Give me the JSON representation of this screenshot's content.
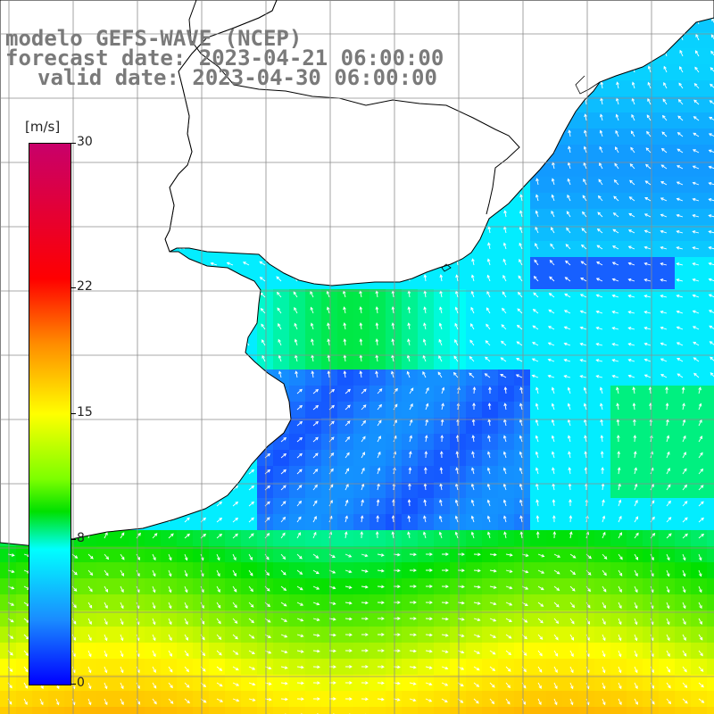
{
  "title": {
    "line1": "modelo GEFS-WAVE (NCEP)",
    "line2": "forecast date: 2023-04-21 06:00:00",
    "line3": "valid date: 2023-04-30 06:00:00"
  },
  "colorbar": {
    "unit": "[m/s]",
    "ticks": [
      "30",
      "22",
      "15",
      "8",
      "0"
    ],
    "tick_values": [
      30,
      22,
      15,
      8,
      0
    ],
    "min": 0,
    "max": 30,
    "colors": [
      "#0000ff",
      "#1a8cff",
      "#00ffff",
      "#00e000",
      "#7cff00",
      "#ffff00",
      "#ff8c00",
      "#ff0000",
      "#c8006a"
    ]
  },
  "map": {
    "land_color": "#ffffff",
    "grid_color": "#8c8c8c",
    "arrow_color": "#ffffff"
  }
}
